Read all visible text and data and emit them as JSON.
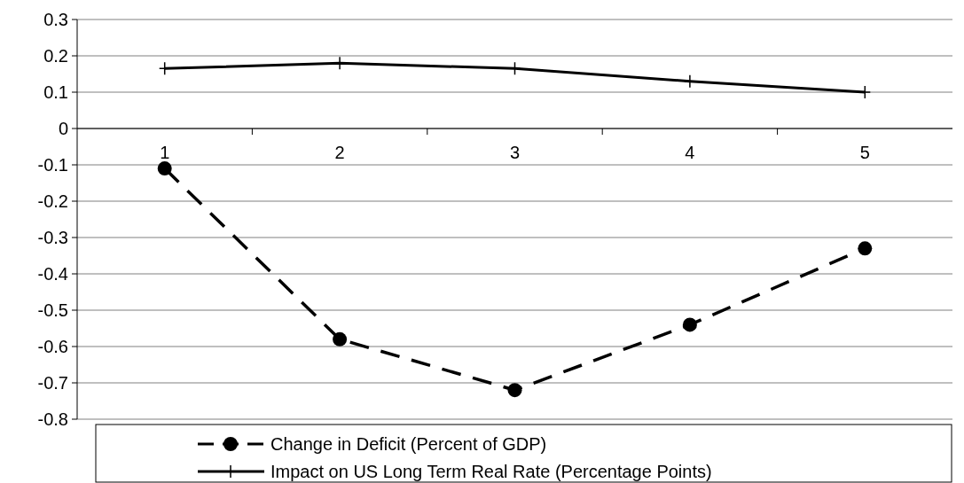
{
  "chart_data": {
    "type": "line",
    "categories": [
      "1",
      "2",
      "3",
      "4",
      "5"
    ],
    "ylim": [
      -0.8,
      0.3
    ],
    "yticks": [
      0.3,
      0.2,
      0.1,
      0,
      -0.1,
      -0.2,
      -0.3,
      -0.4,
      -0.5,
      -0.6,
      -0.7,
      -0.8
    ],
    "grid": "y",
    "legend": "bottom",
    "series": [
      {
        "name": "Change in Deficit (Percent of GDP)",
        "color": "#000000",
        "values": [
          -0.11,
          -0.58,
          -0.72,
          -0.54,
          -0.33
        ],
        "marker": "circle",
        "line_style": "dashed"
      },
      {
        "name": "Impact on US Long Term Real Rate (Percentage Points)",
        "color": "#000000",
        "values": [
          0.165,
          0.18,
          0.165,
          0.13,
          0.1
        ],
        "marker": "cross",
        "line_style": "solid"
      }
    ]
  }
}
